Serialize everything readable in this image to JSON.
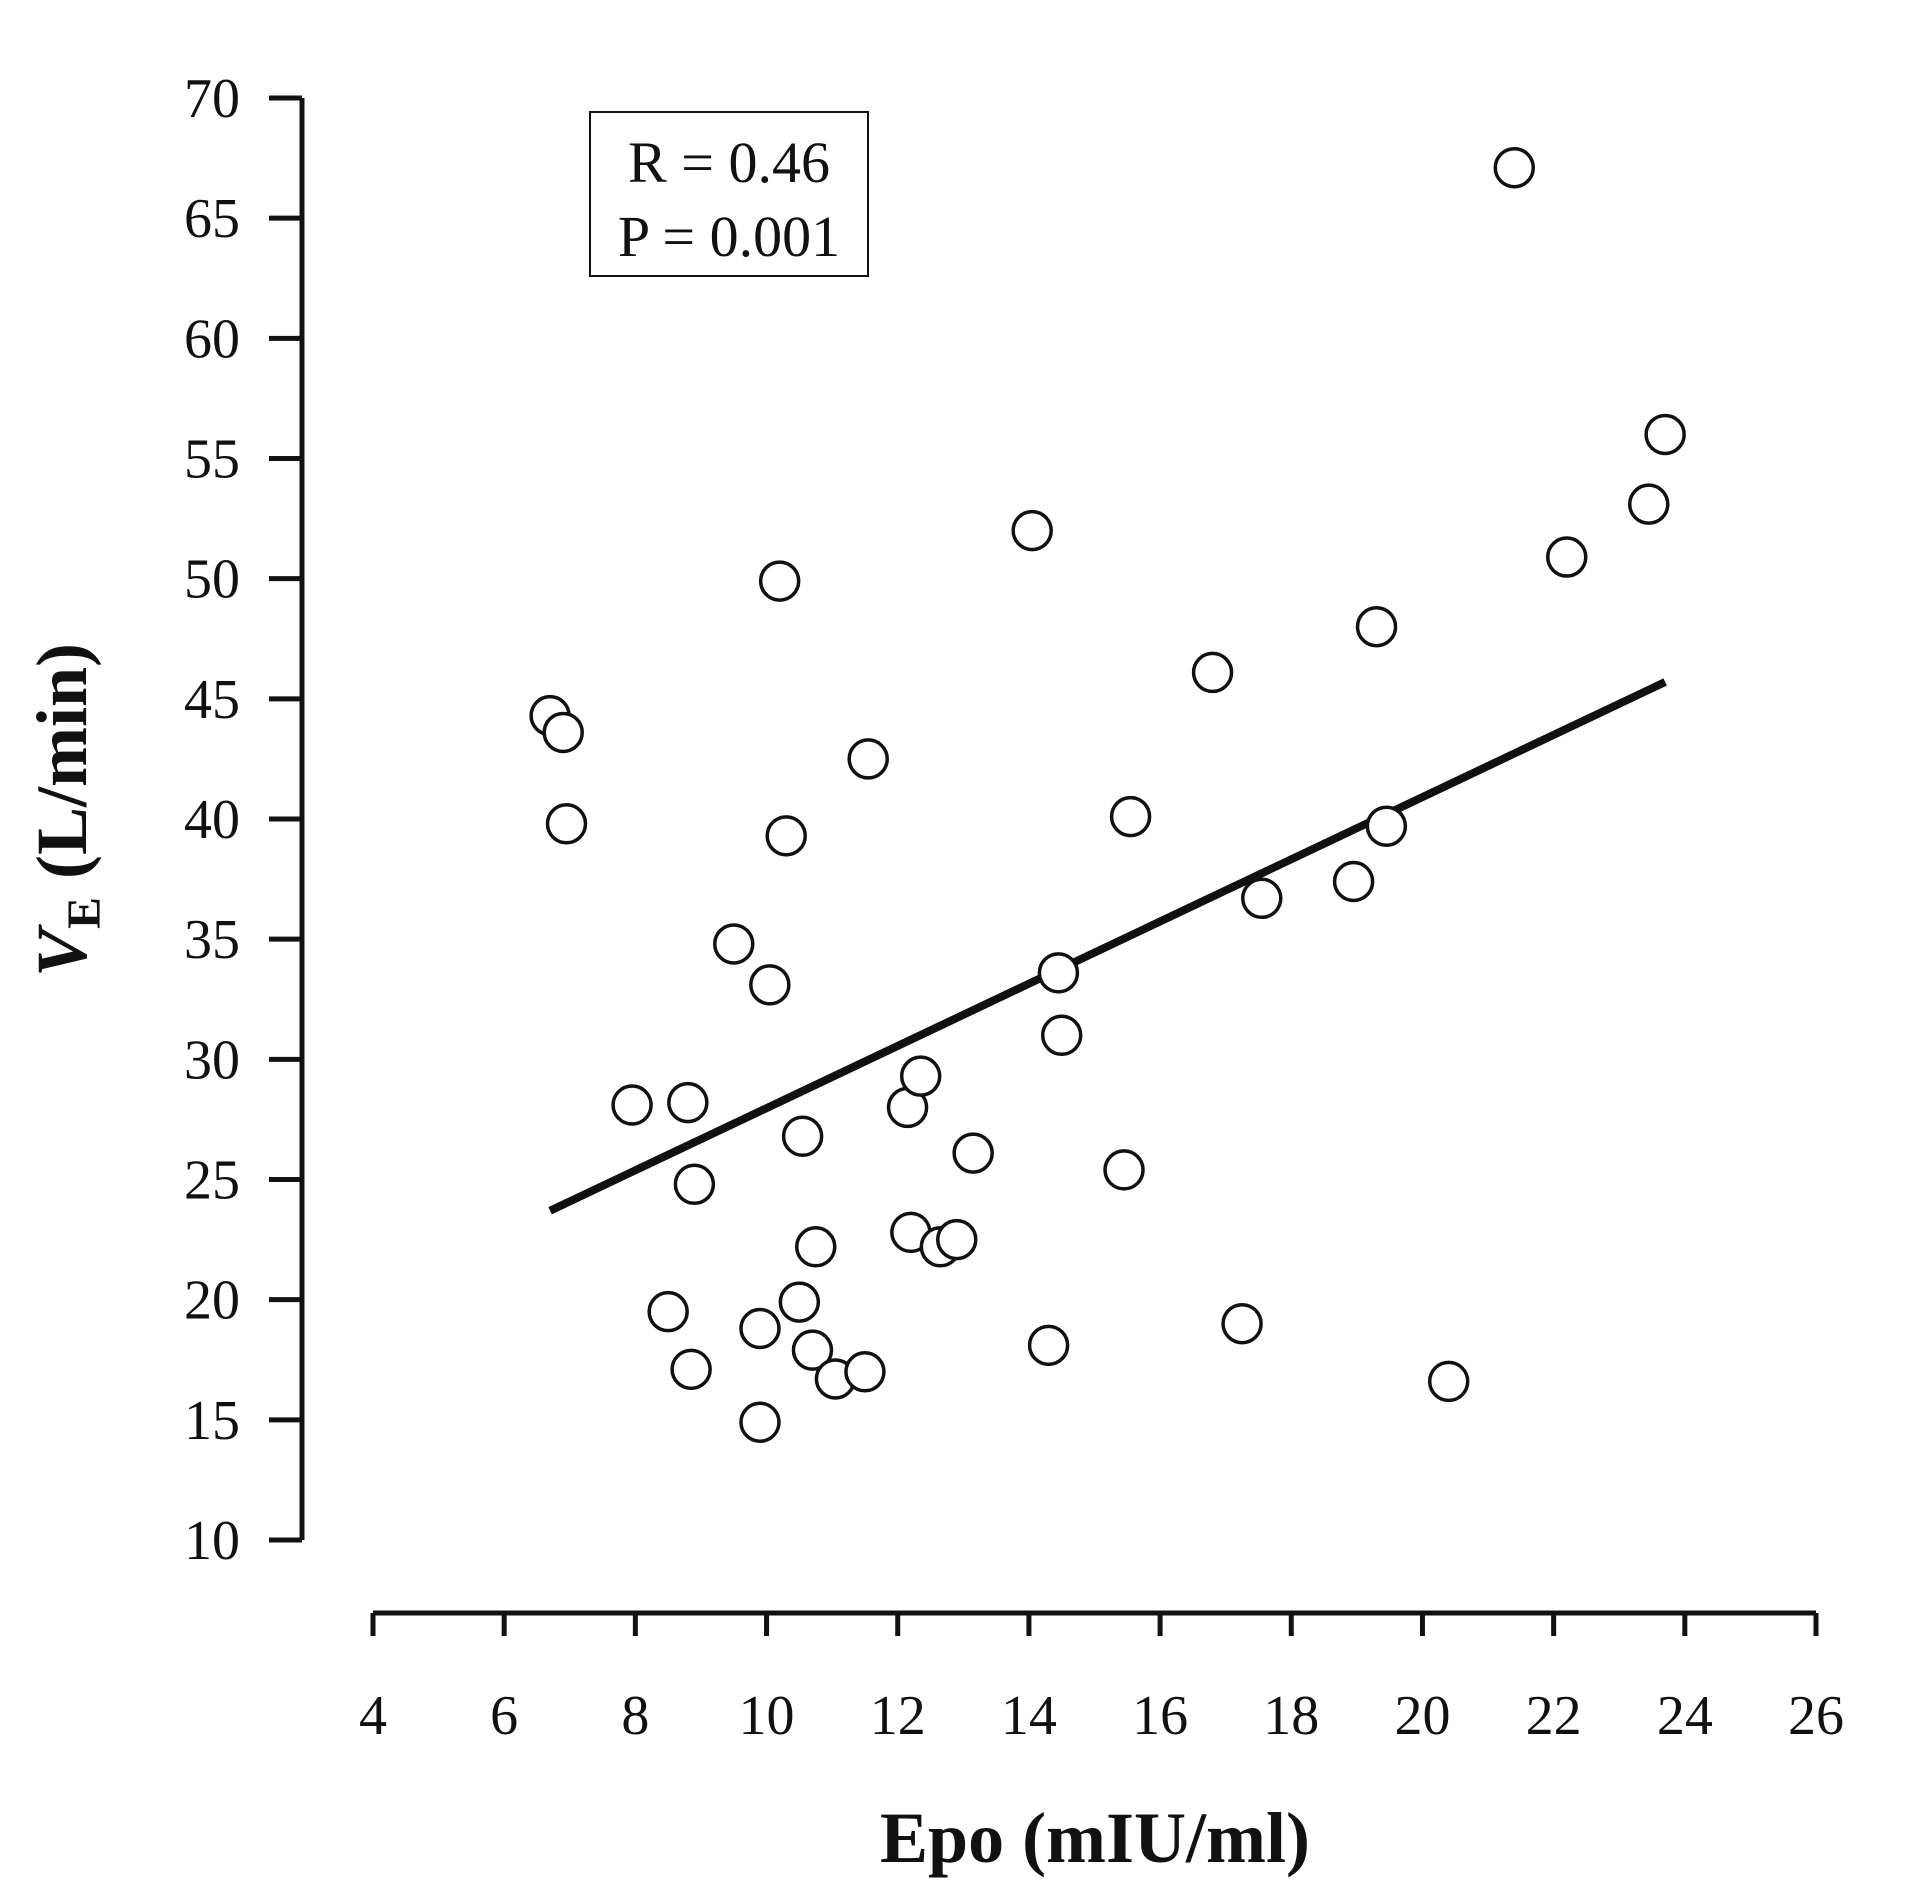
{
  "chart_data": {
    "type": "scatter",
    "xlabel": "Epo (mIU/ml)",
    "ylabel_main": "V",
    "ylabel_sub": "E",
    "ylabel_unit": " (L/min)",
    "xlim": [
      4,
      26
    ],
    "ylim": [
      10,
      70
    ],
    "x_ticks": [
      4,
      6,
      8,
      10,
      12,
      14,
      16,
      18,
      20,
      22,
      24,
      26
    ],
    "y_ticks": [
      10,
      15,
      20,
      25,
      30,
      35,
      40,
      45,
      50,
      55,
      60,
      65,
      70
    ],
    "grid": false,
    "annotation": {
      "line1": "R = 0.46",
      "line2": "P = 0.001"
    },
    "trendline": {
      "x": [
        6.7,
        23.7
      ],
      "y": [
        23.7,
        45.7
      ]
    },
    "points": [
      {
        "x": 6.7,
        "y": 44.3
      },
      {
        "x": 6.9,
        "y": 43.6
      },
      {
        "x": 6.95,
        "y": 39.8
      },
      {
        "x": 7.95,
        "y": 28.1
      },
      {
        "x": 8.5,
        "y": 19.5
      },
      {
        "x": 8.8,
        "y": 28.2
      },
      {
        "x": 8.85,
        "y": 17.1
      },
      {
        "x": 8.9,
        "y": 24.8
      },
      {
        "x": 9.5,
        "y": 34.8
      },
      {
        "x": 9.9,
        "y": 18.8
      },
      {
        "x": 9.9,
        "y": 14.9
      },
      {
        "x": 10.05,
        "y": 33.1
      },
      {
        "x": 10.2,
        "y": 49.9
      },
      {
        "x": 10.3,
        "y": 39.3
      },
      {
        "x": 10.5,
        "y": 19.9
      },
      {
        "x": 10.55,
        "y": 26.8
      },
      {
        "x": 10.7,
        "y": 17.9
      },
      {
        "x": 10.75,
        "y": 22.2
      },
      {
        "x": 11.05,
        "y": 16.7
      },
      {
        "x": 11.5,
        "y": 17.0
      },
      {
        "x": 11.55,
        "y": 42.5
      },
      {
        "x": 12.15,
        "y": 28.0
      },
      {
        "x": 12.2,
        "y": 22.8
      },
      {
        "x": 12.35,
        "y": 29.3
      },
      {
        "x": 12.65,
        "y": 22.2
      },
      {
        "x": 12.9,
        "y": 22.5
      },
      {
        "x": 13.15,
        "y": 26.1
      },
      {
        "x": 14.05,
        "y": 52.0
      },
      {
        "x": 14.3,
        "y": 18.1
      },
      {
        "x": 14.45,
        "y": 33.6
      },
      {
        "x": 14.5,
        "y": 31.0
      },
      {
        "x": 15.45,
        "y": 25.4
      },
      {
        "x": 15.55,
        "y": 40.1
      },
      {
        "x": 16.8,
        "y": 46.1
      },
      {
        "x": 17.25,
        "y": 19.0
      },
      {
        "x": 17.55,
        "y": 36.7
      },
      {
        "x": 18.95,
        "y": 37.4
      },
      {
        "x": 19.3,
        "y": 48.0
      },
      {
        "x": 19.45,
        "y": 39.7
      },
      {
        "x": 20.4,
        "y": 16.6
      },
      {
        "x": 21.4,
        "y": 67.1
      },
      {
        "x": 22.2,
        "y": 50.9
      },
      {
        "x": 23.45,
        "y": 53.1
      },
      {
        "x": 23.7,
        "y": 56.0
      }
    ]
  }
}
